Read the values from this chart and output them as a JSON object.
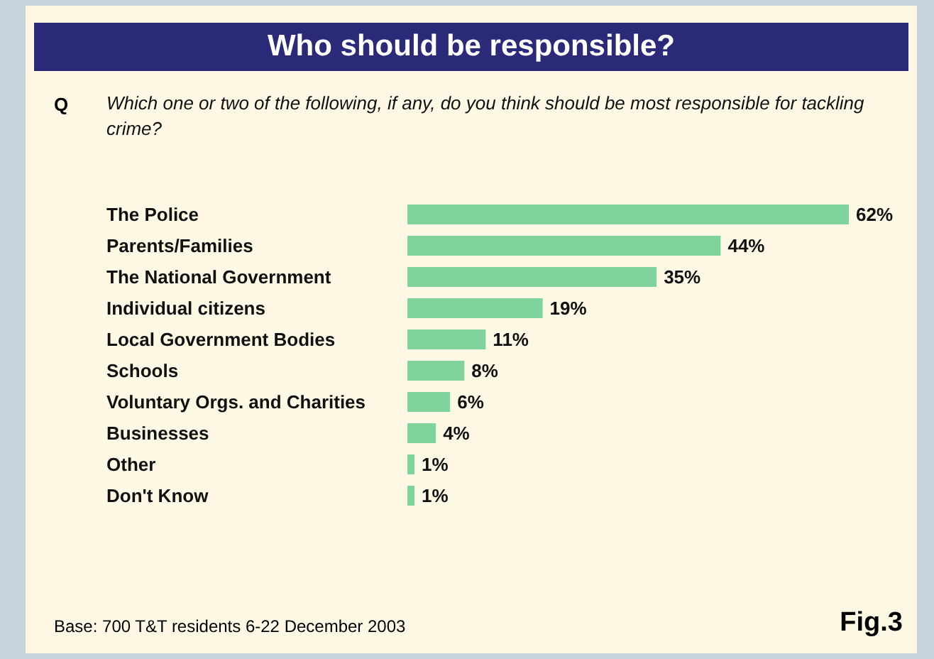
{
  "chart_data": {
    "type": "bar",
    "orientation": "horizontal",
    "title": "Who should be responsible?",
    "subtitle": "Which one or two of the following, if any, do you think should be most responsible for tackling crime?",
    "categories": [
      "The Police",
      "Parents/Families",
      "The National Government",
      "Individual citizens",
      "Local Government Bodies",
      "Schools",
      "Voluntary Orgs. and Charities",
      "Businesses",
      "Other",
      "Don't Know"
    ],
    "values": [
      62,
      44,
      35,
      19,
      11,
      8,
      6,
      4,
      1,
      1
    ],
    "color": "#7fd49b",
    "data_labels": true,
    "value_labels": [
      "62%",
      "44%",
      "35%",
      "19%",
      "11%",
      "8%",
      "6%",
      "4%",
      "1%",
      "1%"
    ],
    "annotations": [
      "Q",
      "Base: 700 T&T residents 6-22 December 2003",
      "Fig.3"
    ]
  }
}
